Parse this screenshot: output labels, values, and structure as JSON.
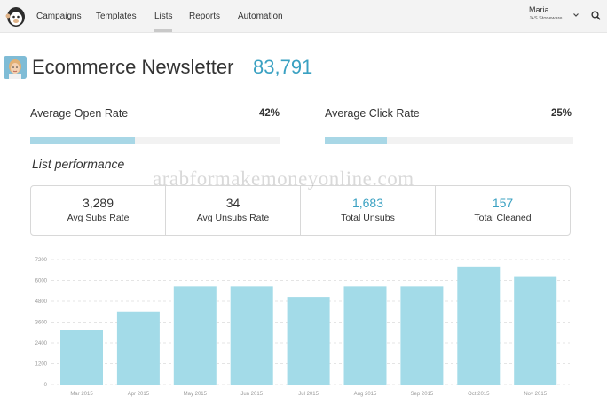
{
  "nav": {
    "items": [
      {
        "label": "Campaigns"
      },
      {
        "label": "Templates"
      },
      {
        "label": "Lists"
      },
      {
        "label": "Reports"
      },
      {
        "label": "Automation"
      }
    ],
    "active": "Lists"
  },
  "user": {
    "name": "Maria",
    "org": "J+S Stoneware"
  },
  "header": {
    "title": "Ecommerce Newsletter",
    "count": "83,791"
  },
  "rates": {
    "open": {
      "label": "Average Open Rate",
      "value": "42%",
      "fraction": 0.42
    },
    "click": {
      "label": "Average Click Rate",
      "value": "25%",
      "fraction": 0.25
    }
  },
  "performance": {
    "title": "List performance",
    "stats": [
      {
        "value": "3,289",
        "label": "Avg Subs Rate"
      },
      {
        "value": "34",
        "label": "Avg Unsubs Rate"
      },
      {
        "value": "1,683",
        "label": "Total Unsubs"
      },
      {
        "value": "157",
        "label": "Total Cleaned"
      }
    ]
  },
  "watermark": "arabformakemoneyonline.com",
  "colors": {
    "accent": "#3aa1c2",
    "bar": "#a3dbe8",
    "progress": "#a8d7e6"
  },
  "chart_data": {
    "type": "bar",
    "categories": [
      "Mar 2015",
      "Apr 2015",
      "May 2015",
      "Jun 2015",
      "Jul 2015",
      "Aug 2015",
      "Sep 2015",
      "Oct 2015",
      "Nov 2015"
    ],
    "values": [
      3150,
      4200,
      5650,
      5650,
      5050,
      5650,
      5650,
      6800,
      6200
    ],
    "yticks": [
      0,
      1200,
      2400,
      3600,
      4800,
      6000,
      7200
    ],
    "ylim": [
      0,
      7200
    ],
    "grid": true
  }
}
